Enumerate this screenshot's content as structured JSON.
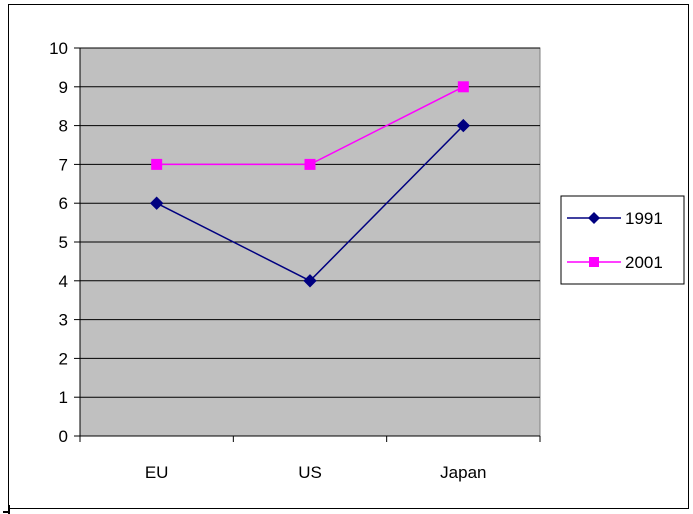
{
  "chart_data": {
    "type": "line",
    "categories": [
      "EU",
      "US",
      "Japan"
    ],
    "series": [
      {
        "name": "1991",
        "values": [
          6,
          4,
          8
        ],
        "color": "#000080",
        "marker": "diamond"
      },
      {
        "name": "2001",
        "values": [
          7,
          7,
          9
        ],
        "color": "#FF00FF",
        "marker": "square"
      }
    ],
    "title": "",
    "xlabel": "",
    "ylabel": "",
    "ylim": [
      0,
      10
    ],
    "yticks": [
      "0",
      "1",
      "2",
      "3",
      "4",
      "5",
      "6",
      "7",
      "8",
      "9",
      "10"
    ],
    "grid": true,
    "plot_background": "#C0C0C0",
    "legend_position": "right"
  }
}
